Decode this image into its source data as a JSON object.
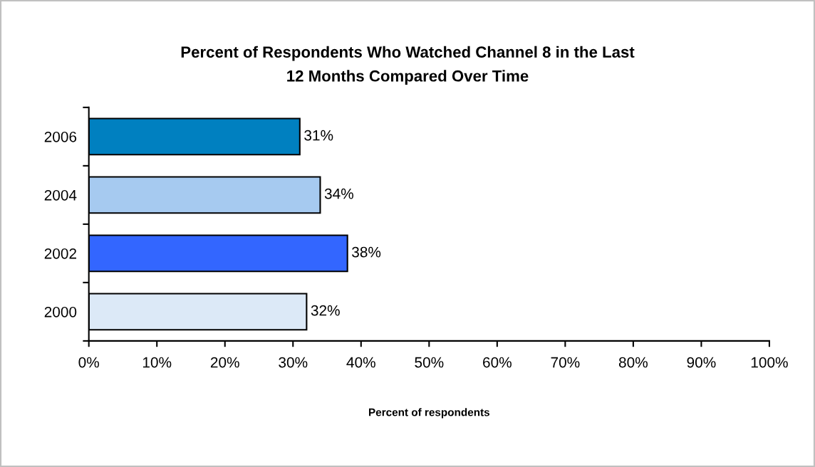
{
  "chart_data": {
    "type": "bar",
    "orientation": "horizontal",
    "title": "Percent of Respondents Who Watched Channel 8 in the Last\n12 Months Compared Over Time",
    "xlabel": "Percent of respondents",
    "categories": [
      "2006",
      "2004",
      "2002",
      "2000"
    ],
    "values": [
      31,
      34,
      38,
      32
    ],
    "colors": [
      "#0080c0",
      "#a6caf0",
      "#3366ff",
      "#dce9f7"
    ],
    "value_labels": [
      "31%",
      "34%",
      "38%",
      "32%"
    ],
    "xlim": [
      0,
      100
    ],
    "xticks": [
      {
        "value": 0,
        "label": "0%"
      },
      {
        "value": 10,
        "label": "10%"
      },
      {
        "value": 20,
        "label": "20%"
      },
      {
        "value": 30,
        "label": "30%"
      },
      {
        "value": 40,
        "label": "40%"
      },
      {
        "value": 50,
        "label": "50%"
      },
      {
        "value": 60,
        "label": "60%"
      },
      {
        "value": 70,
        "label": "70%"
      },
      {
        "value": 80,
        "label": "80%"
      },
      {
        "value": 90,
        "label": "90%"
      },
      {
        "value": 100,
        "label": "100%"
      }
    ],
    "grid": false,
    "legend": false
  }
}
